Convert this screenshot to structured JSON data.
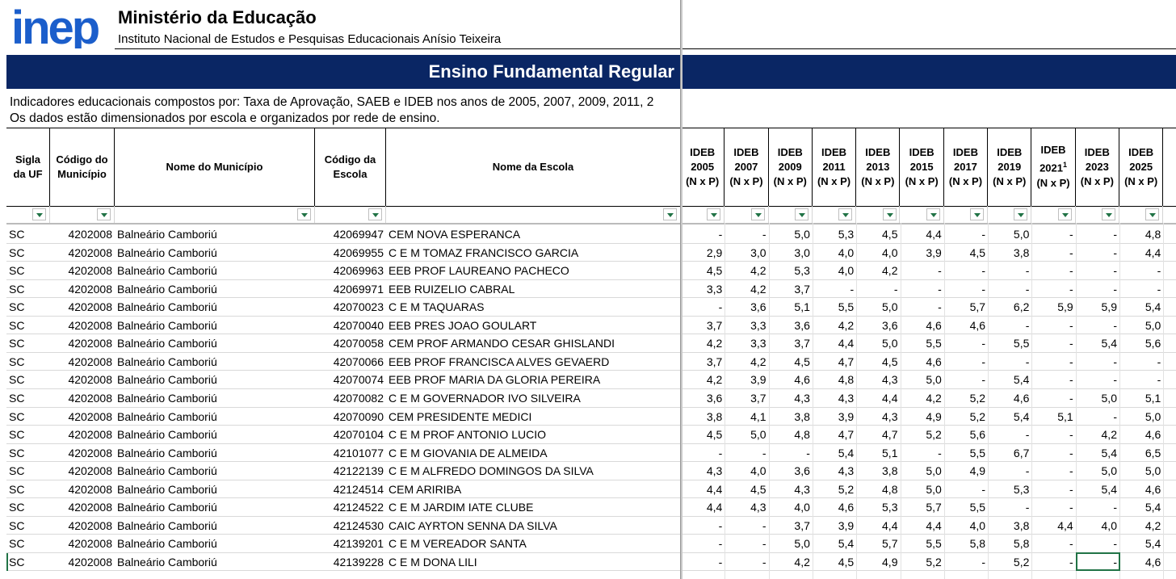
{
  "header": {
    "logo": "inep",
    "ministry": "Ministério da Educação",
    "institute": "Instituto Nacional de Estudos e Pesquisas Educacionais Anísio Teixeira"
  },
  "banner": "Ensino Fundamental Regular",
  "description": [
    "Indicadores educacionais compostos por: Taxa de Aprovação, SAEB e IDEB nos anos de 2005, 2007, 2009, 2011, 2",
    "Os dados estão dimensionados por escola e organizados por rede de ensino."
  ],
  "table": {
    "columns": [
      "Sigla da UF",
      "Código do Município",
      "Nome do Município",
      "Código da Escola",
      "Nome da Escola"
    ],
    "ideb_columns": [
      {
        "label": "IDEB",
        "year": "2005",
        "unit": "(N x P)"
      },
      {
        "label": "IDEB",
        "year": "2007",
        "unit": "(N x P)"
      },
      {
        "label": "IDEB",
        "year": "2009",
        "unit": "(N x P)"
      },
      {
        "label": "IDEB",
        "year": "2011",
        "unit": "(N x P)"
      },
      {
        "label": "IDEB",
        "year": "2013",
        "unit": "(N x P)"
      },
      {
        "label": "IDEB",
        "year": "2015",
        "unit": "(N x P)"
      },
      {
        "label": "IDEB",
        "year": "2017",
        "unit": "(N x P)"
      },
      {
        "label": "IDEB",
        "year": "2019",
        "unit": "(N x P)"
      },
      {
        "label": "IDEB",
        "year": "2021",
        "sup": "1",
        "unit": "(N x P)"
      },
      {
        "label": "IDEB",
        "year": "2023",
        "unit": "(N x P)"
      },
      {
        "label": "IDEB",
        "year": "2025",
        "unit": "(N x P)"
      }
    ],
    "rows": [
      [
        "SC",
        "4202008",
        "Balneário Camboriú",
        "42069947",
        "CEM NOVA ESPERANCA",
        "-",
        "-",
        "5,0",
        "5,3",
        "4,5",
        "4,4",
        "-",
        "5,0",
        "-",
        "-",
        "4,8"
      ],
      [
        "SC",
        "4202008",
        "Balneário Camboriú",
        "42069955",
        "C E M TOMAZ FRANCISCO GARCIA",
        "2,9",
        "3,0",
        "3,0",
        "4,0",
        "4,0",
        "3,9",
        "4,5",
        "3,8",
        "-",
        "-",
        "4,4"
      ],
      [
        "SC",
        "4202008",
        "Balneário Camboriú",
        "42069963",
        "EEB PROF LAUREANO PACHECO",
        "4,5",
        "4,2",
        "5,3",
        "4,0",
        "4,2",
        "-",
        "-",
        "-",
        "-",
        "-",
        "-"
      ],
      [
        "SC",
        "4202008",
        "Balneário Camboriú",
        "42069971",
        "EEB RUIZELIO CABRAL",
        "3,3",
        "4,2",
        "3,7",
        "-",
        "-",
        "-",
        "-",
        "-",
        "-",
        "-",
        "-"
      ],
      [
        "SC",
        "4202008",
        "Balneário Camboriú",
        "42070023",
        "C E M TAQUARAS",
        "-",
        "3,6",
        "5,1",
        "5,5",
        "5,0",
        "-",
        "5,7",
        "6,2",
        "5,9",
        "5,9",
        "5,4"
      ],
      [
        "SC",
        "4202008",
        "Balneário Camboriú",
        "42070040",
        "EEB PRES JOAO GOULART",
        "3,7",
        "3,3",
        "3,6",
        "4,2",
        "3,6",
        "4,6",
        "4,6",
        "-",
        "-",
        "-",
        "5,0"
      ],
      [
        "SC",
        "4202008",
        "Balneário Camboriú",
        "42070058",
        "CEM PROF ARMANDO CESAR GHISLANDI",
        "4,2",
        "3,3",
        "3,7",
        "4,4",
        "5,0",
        "5,5",
        "-",
        "5,5",
        "-",
        "5,4",
        "5,6"
      ],
      [
        "SC",
        "4202008",
        "Balneário Camboriú",
        "42070066",
        "EEB PROF FRANCISCA ALVES GEVAERD",
        "3,7",
        "4,2",
        "4,5",
        "4,7",
        "4,5",
        "4,6",
        "-",
        "-",
        "-",
        "-",
        "-"
      ],
      [
        "SC",
        "4202008",
        "Balneário Camboriú",
        "42070074",
        "EEB PROF MARIA DA GLORIA PEREIRA",
        "4,2",
        "3,9",
        "4,6",
        "4,8",
        "4,3",
        "5,0",
        "-",
        "5,4",
        "-",
        "-",
        "-"
      ],
      [
        "SC",
        "4202008",
        "Balneário Camboriú",
        "42070082",
        "C E M GOVERNADOR IVO SILVEIRA",
        "3,6",
        "3,7",
        "4,3",
        "4,3",
        "4,4",
        "4,2",
        "5,2",
        "4,6",
        "-",
        "5,0",
        "5,1"
      ],
      [
        "SC",
        "4202008",
        "Balneário Camboriú",
        "42070090",
        "CEM PRESIDENTE MEDICI",
        "3,8",
        "4,1",
        "3,8",
        "3,9",
        "4,3",
        "4,9",
        "5,2",
        "5,4",
        "5,1",
        "-",
        "5,0"
      ],
      [
        "SC",
        "4202008",
        "Balneário Camboriú",
        "42070104",
        "C E M PROF ANTONIO LUCIO",
        "4,5",
        "5,0",
        "4,8",
        "4,7",
        "4,7",
        "5,2",
        "5,6",
        "-",
        "-",
        "4,2",
        "4,6"
      ],
      [
        "SC",
        "4202008",
        "Balneário Camboriú",
        "42101077",
        "C E M GIOVANIA DE ALMEIDA",
        "-",
        "-",
        "-",
        "5,4",
        "5,1",
        "-",
        "5,5",
        "6,7",
        "-",
        "5,4",
        "6,5"
      ],
      [
        "SC",
        "4202008",
        "Balneário Camboriú",
        "42122139",
        "C E M ALFREDO DOMINGOS DA SILVA",
        "4,3",
        "4,0",
        "3,6",
        "4,3",
        "3,8",
        "5,0",
        "4,9",
        "-",
        "-",
        "5,0",
        "5,0"
      ],
      [
        "SC",
        "4202008",
        "Balneário Camboriú",
        "42124514",
        "CEM ARIRIBA",
        "4,4",
        "4,5",
        "4,3",
        "5,2",
        "4,8",
        "5,0",
        "-",
        "5,3",
        "-",
        "5,4",
        "4,6"
      ],
      [
        "SC",
        "4202008",
        "Balneário Camboriú",
        "42124522",
        "C E M JARDIM IATE CLUBE",
        "4,4",
        "4,3",
        "4,0",
        "4,6",
        "5,3",
        "5,7",
        "5,5",
        "-",
        "-",
        "-",
        "5,4"
      ],
      [
        "SC",
        "4202008",
        "Balneário Camboriú",
        "42124530",
        "CAIC AYRTON SENNA DA SILVA",
        "-",
        "-",
        "3,7",
        "3,9",
        "4,4",
        "4,4",
        "4,0",
        "3,8",
        "4,4",
        "4,0",
        "4,2"
      ],
      [
        "SC",
        "4202008",
        "Balneário Camboriú",
        "42139201",
        "C E M VEREADOR SANTA",
        "-",
        "-",
        "5,0",
        "5,4",
        "5,7",
        "5,5",
        "5,8",
        "5,8",
        "-",
        "-",
        "5,4"
      ],
      [
        "SC",
        "4202008",
        "Balneário Camboriú",
        "42139228",
        "C E M DONA LILI",
        "-",
        "-",
        "4,2",
        "4,5",
        "4,9",
        "5,2",
        "-",
        "5,2",
        "-",
        "-",
        "4,6"
      ]
    ]
  }
}
